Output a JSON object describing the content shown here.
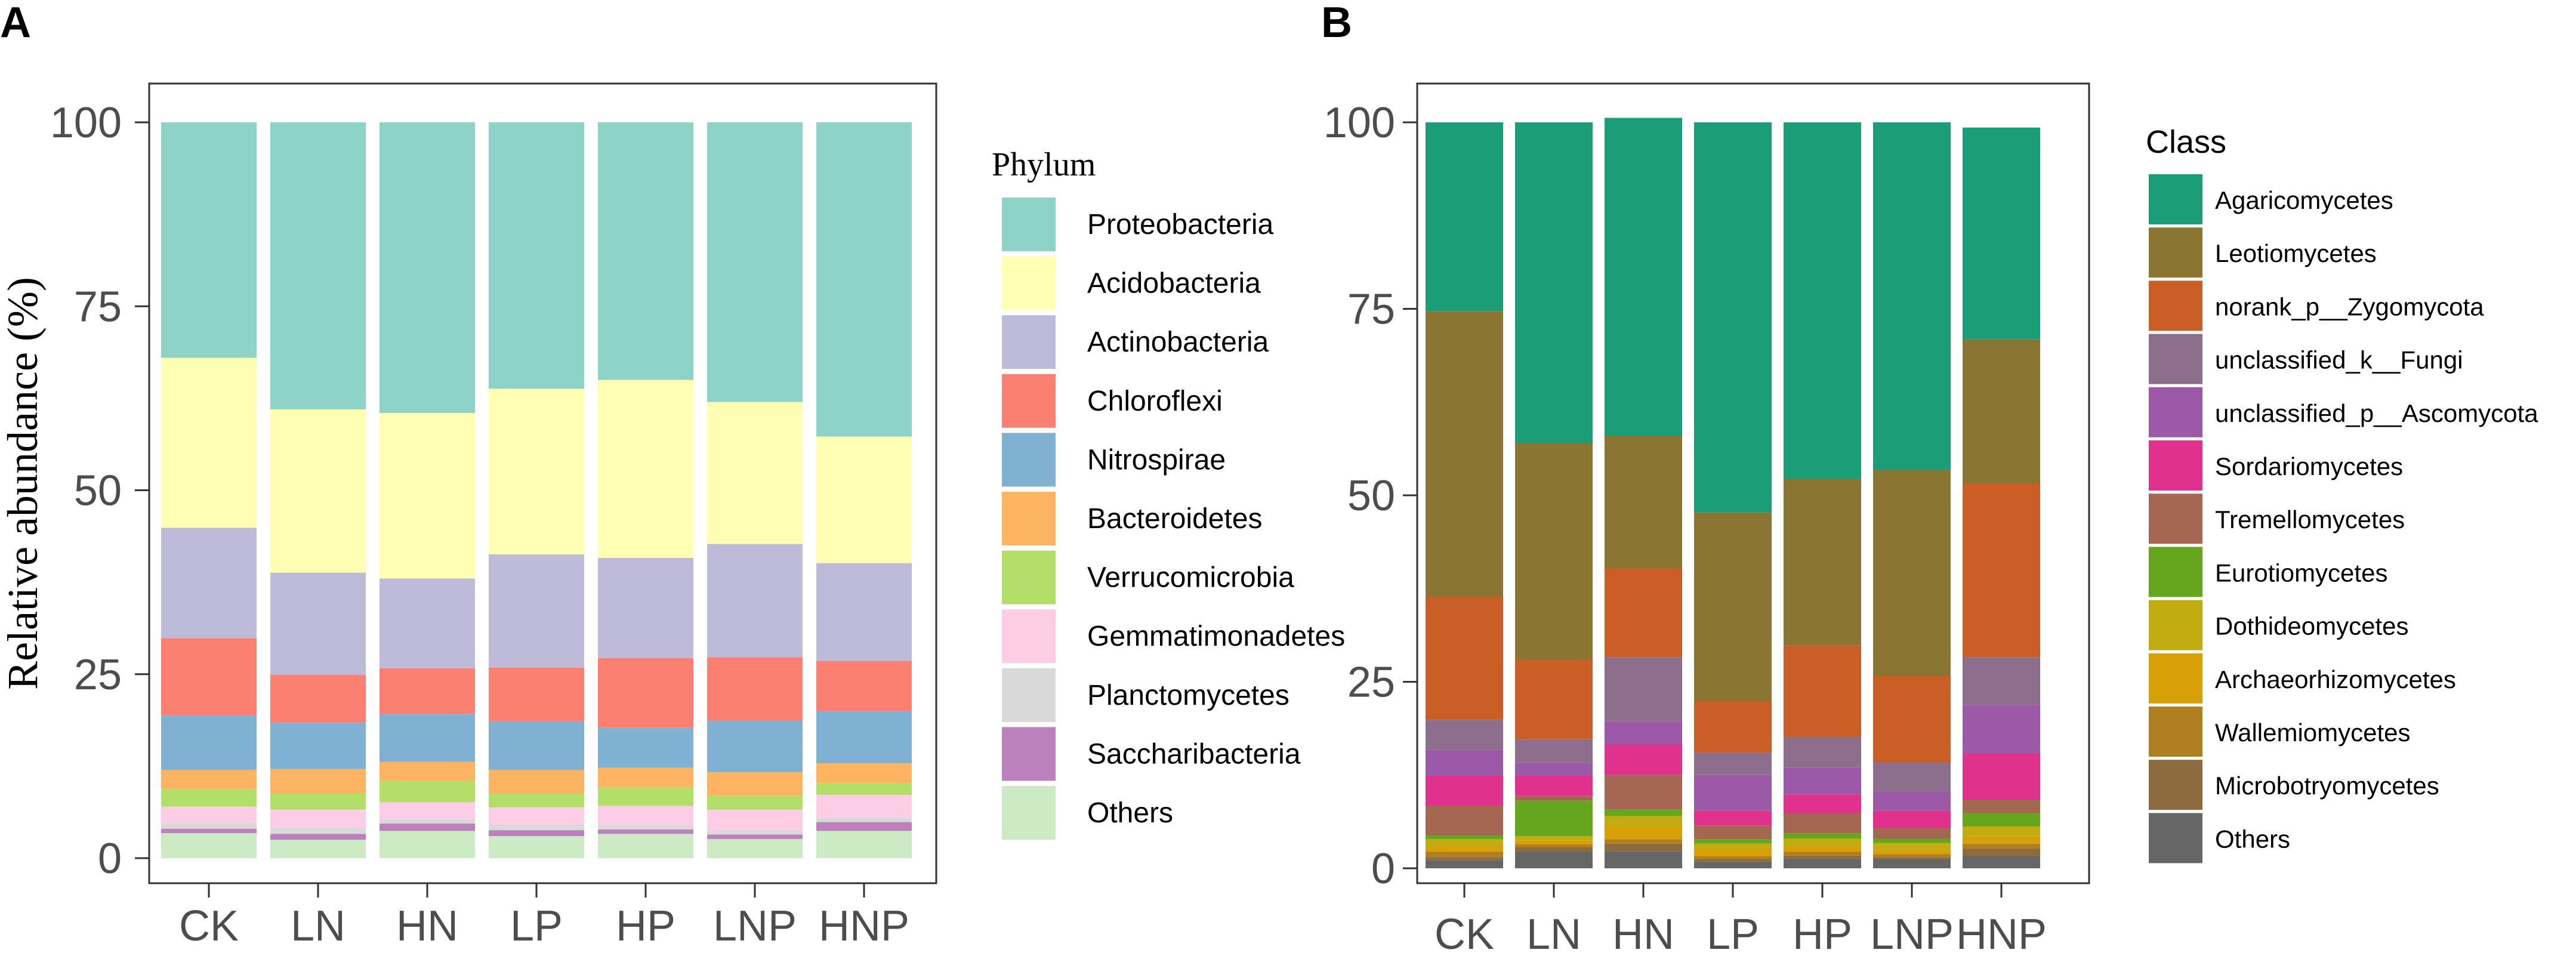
{
  "panels": {
    "a": {
      "letter": "A"
    },
    "b": {
      "letter": "B"
    }
  },
  "chart_data": [
    {
      "type": "bar",
      "stacked": true,
      "title": "",
      "xlabel": "",
      "ylabel": "Relative abundance (%)",
      "ylim": [
        0,
        100
      ],
      "yticks": [
        0,
        25,
        50,
        75,
        100
      ],
      "categories": [
        "CK",
        "LN",
        "HN",
        "LP",
        "HP",
        "LNP",
        "HNP"
      ],
      "legend_title": "Phylum",
      "legend_position": "right",
      "stack_order": "first series on top",
      "series": [
        {
          "name": "Proteobacteria",
          "color": "#8DD3C7",
          "values": [
            32,
            39,
            39.5,
            36.2,
            35,
            38,
            42.7
          ]
        },
        {
          "name": "Acidobacteria",
          "color": "#FFFFB3",
          "values": [
            23.1,
            22.2,
            22.5,
            22.5,
            24.2,
            19.3,
            17.2
          ]
        },
        {
          "name": "Actinobacteria",
          "color": "#BEBADA",
          "values": [
            15,
            13.9,
            12.2,
            15.4,
            13.6,
            15.4,
            13.3
          ]
        },
        {
          "name": "Chloroflexi",
          "color": "#FB8072",
          "values": [
            10.5,
            6.5,
            6.2,
            7.3,
            9.5,
            8.6,
            6.8
          ]
        },
        {
          "name": "Nitrospirae",
          "color": "#80B1D3",
          "values": [
            7.4,
            6.3,
            6.5,
            6.6,
            5.4,
            7,
            7.1
          ]
        },
        {
          "name": "Bacteroidetes",
          "color": "#FDB462",
          "values": [
            2.6,
            3.3,
            2.6,
            3.2,
            2.7,
            3.2,
            2.7
          ]
        },
        {
          "name": "Verrucomicrobia",
          "color": "#B3DE69",
          "values": [
            2.4,
            2.2,
            2.9,
            1.9,
            2.5,
            1.9,
            1.6
          ]
        },
        {
          "name": "Gemmatimonadetes",
          "color": "#FCCDE5",
          "values": [
            2.2,
            2.5,
            2.3,
            2.3,
            2.5,
            2.8,
            3.1
          ]
        },
        {
          "name": "Planctomycetes",
          "color": "#D9D9D9",
          "values": [
            0.8,
            0.8,
            0.6,
            0.8,
            0.7,
            0.6,
            0.6
          ]
        },
        {
          "name": "Saccharibacteria",
          "color": "#BC80BD",
          "values": [
            0.6,
            0.8,
            1,
            0.8,
            0.6,
            0.6,
            1.2
          ]
        },
        {
          "name": "Others",
          "color": "#CCEBC5",
          "values": [
            3.4,
            2.5,
            3.7,
            3,
            3.3,
            2.6,
            3.7
          ]
        }
      ]
    },
    {
      "type": "bar",
      "stacked": true,
      "title": "",
      "xlabel": "",
      "ylabel": "",
      "ylim": [
        0,
        100
      ],
      "yticks": [
        0,
        25,
        50,
        75,
        100
      ],
      "categories": [
        "CK",
        "LN",
        "HN",
        "LP",
        "HP",
        "LNP",
        "HNP"
      ],
      "legend_title": "Class",
      "legend_position": "right",
      "stack_order": "first series on top",
      "series": [
        {
          "name": "Agaricomycetes",
          "color": "#1B9E77",
          "values": [
            25.3,
            43,
            42.6,
            52.3,
            47.8,
            46.6,
            28.4
          ]
        },
        {
          "name": "Leotiomycetes",
          "color": "#8B7533",
          "values": [
            38.3,
            29,
            17.8,
            25.3,
            22.3,
            27.6,
            19.3
          ]
        },
        {
          "name": "norank_p__Zygomycota",
          "color": "#C95F26",
          "values": [
            16.5,
            10.7,
            11.9,
            6.9,
            12.3,
            11.6,
            23.3
          ]
        },
        {
          "name": "unclassified_k__Fungi",
          "color": "#8D6E8C",
          "values": [
            4,
            3.2,
            8.6,
            3,
            4.1,
            4,
            6.4
          ]
        },
        {
          "name": "unclassified_p__Ascomycota",
          "color": "#9B59A8",
          "values": [
            3.5,
            1.7,
            3.1,
            4.8,
            3.6,
            2.5,
            6.5
          ]
        },
        {
          "name": "Sordariomycetes",
          "color": "#E0328D",
          "values": [
            4,
            2.7,
            4.1,
            2,
            2.5,
            2.3,
            6.2
          ]
        },
        {
          "name": "Tremellomycetes",
          "color": "#A56752",
          "values": [
            4,
            0.6,
            4.6,
            1.8,
            2.7,
            1.4,
            1.8
          ]
        },
        {
          "name": "Eurotiomycetes",
          "color": "#66A61E",
          "values": [
            0.5,
            4.8,
            0.9,
            0.6,
            0.7,
            0.6,
            1.8
          ]
        },
        {
          "name": "Dothideomycetes",
          "color": "#C1AC12",
          "values": [
            0.9,
            0.6,
            1.4,
            0.7,
            1,
            0.9,
            1.3
          ]
        },
        {
          "name": "Archaeorhizomycetes",
          "color": "#D8A007",
          "values": [
            0.8,
            0.5,
            1.7,
            1,
            0.8,
            0.6,
            1
          ]
        },
        {
          "name": "Wallemiomycetes",
          "color": "#B07F1F",
          "values": [
            0.7,
            0.4,
            0.6,
            0.4,
            0.5,
            0.4,
            0.7
          ]
        },
        {
          "name": "Microbotryomycetes",
          "color": "#8D6B3F",
          "values": [
            0.4,
            0.6,
            1,
            0.3,
            0.4,
            0.3,
            1
          ]
        },
        {
          "name": "Others",
          "color": "#666666",
          "values": [
            1.1,
            2.2,
            2.3,
            0.9,
            1.3,
            1.2,
            1.6
          ]
        }
      ]
    }
  ]
}
